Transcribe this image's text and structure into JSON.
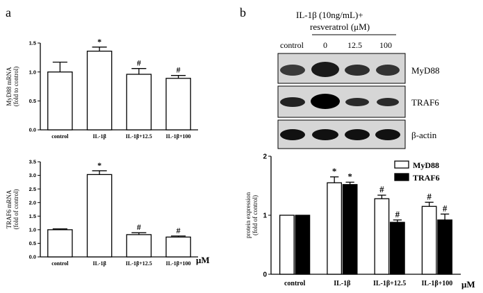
{
  "panel_labels": {
    "a": "a",
    "b": "b"
  },
  "blot": {
    "header_line1": "IL-1β (10ng/mL)+",
    "header_line2": "resveratrol (μM)",
    "lane_labels": [
      "control",
      "0",
      "12.5",
      "100"
    ],
    "rows": [
      "MyD88",
      "TRAF6",
      "β-actin"
    ]
  },
  "unit_label": "μM",
  "chart_data": [
    {
      "id": "myd88-mrna",
      "type": "bar",
      "ylabel_line1": "MyD88 mRNA",
      "ylabel_line2": "(fold to control)",
      "categories": [
        "control",
        "IL-1β",
        "IL-1β+12.5",
        "IL-1β+100"
      ],
      "values": [
        1.0,
        1.36,
        0.96,
        0.89
      ],
      "errors": [
        0.17,
        0.07,
        0.1,
        0.05
      ],
      "annotations": [
        "",
        "*",
        "#",
        "#"
      ],
      "yticks": [
        "0.0",
        "0.5",
        "1.0",
        "1.5"
      ],
      "ylim": [
        0,
        1.5
      ],
      "bar_color": "#ffffff"
    },
    {
      "id": "traf6-mrna",
      "type": "bar",
      "ylabel_line1": "TRAF6 mRNA",
      "ylabel_line2": "(fold of control)",
      "categories": [
        "control",
        "IL-1β",
        "IL-1β+12.5",
        "IL-1β+100"
      ],
      "values": [
        1.0,
        3.03,
        0.82,
        0.73
      ],
      "errors": [
        0.03,
        0.14,
        0.07,
        0.04
      ],
      "annotations": [
        "",
        "*",
        "#",
        "#"
      ],
      "yticks": [
        "0.0",
        "0.5",
        "1.0",
        "1.5",
        "2.0",
        "2.5",
        "3.0",
        "3.5"
      ],
      "ylim": [
        0,
        3.5
      ],
      "bar_color": "#ffffff"
    },
    {
      "id": "protein-expression",
      "type": "bar",
      "ylabel_line1": "protein expression",
      "ylabel_line2": "(fold of control)",
      "categories": [
        "control",
        "IL-1β",
        "IL-1β+12.5",
        "IL-1β+100"
      ],
      "yticks": [
        "0",
        "1",
        "2"
      ],
      "ylim": [
        0,
        2
      ],
      "legend_position": "top-right",
      "series": [
        {
          "name": "MyD88",
          "color": "#ffffff",
          "values": [
            1.0,
            1.55,
            1.28,
            1.15
          ],
          "errors": [
            0,
            0.1,
            0.06,
            0.07
          ],
          "annotations": [
            "",
            "*",
            "#",
            "#"
          ]
        },
        {
          "name": "TRAF6",
          "color": "#000000",
          "values": [
            1.0,
            1.52,
            0.88,
            0.92
          ],
          "errors": [
            0,
            0.04,
            0.04,
            0.1
          ],
          "annotations": [
            "",
            "*",
            "#",
            "#"
          ]
        }
      ]
    }
  ]
}
